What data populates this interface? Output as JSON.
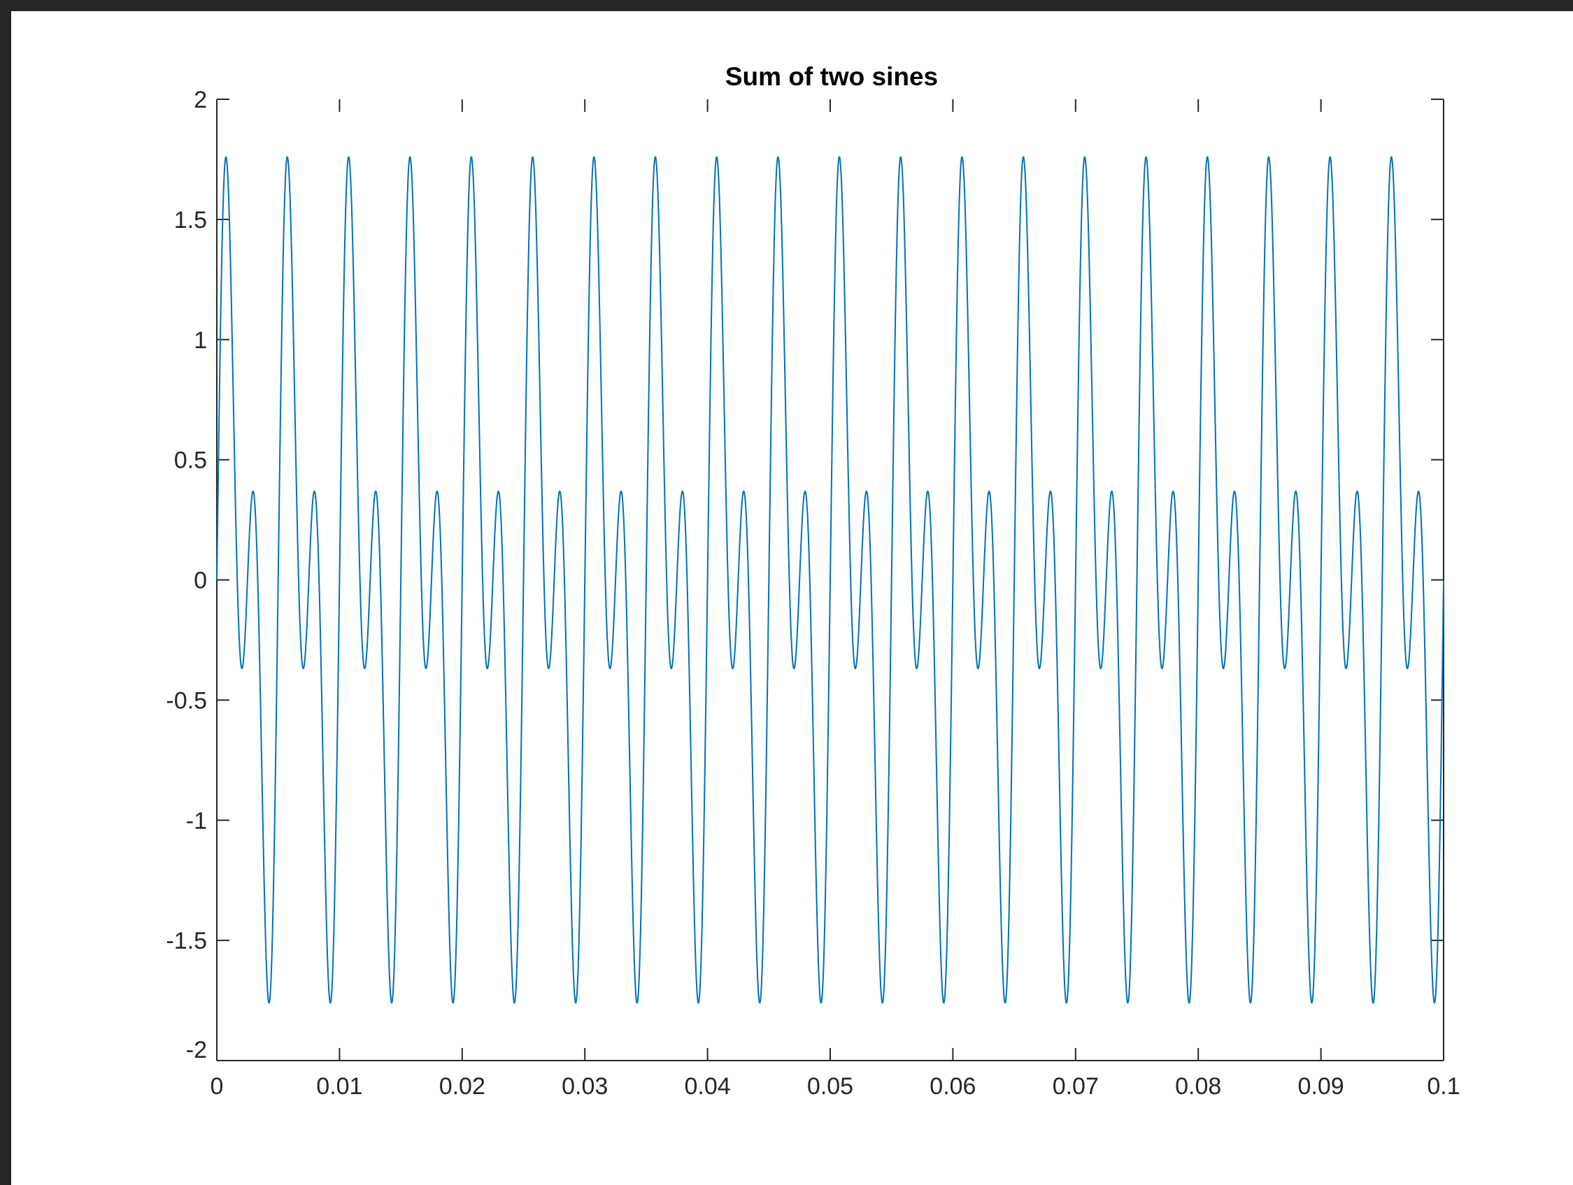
{
  "chart_data": {
    "type": "line",
    "title": "Sum of two sines",
    "xlabel": "",
    "ylabel": "",
    "xlim": [
      0,
      0.1
    ],
    "ylim": [
      -2,
      2
    ],
    "x_ticks": [
      0,
      0.01,
      0.02,
      0.03,
      0.04,
      0.05,
      0.06,
      0.07,
      0.08,
      0.09,
      0.1
    ],
    "x_tick_labels": [
      "0",
      "0.01",
      "0.02",
      "0.03",
      "0.04",
      "0.05",
      "0.06",
      "0.07",
      "0.08",
      "0.09",
      "0.1"
    ],
    "y_ticks": [
      -2,
      -1.5,
      -1,
      -0.5,
      0,
      0.5,
      1,
      1.5,
      2
    ],
    "y_tick_labels": [
      "-2",
      "-1.5",
      "-1",
      "-0.5",
      "0",
      "0.5",
      "1",
      "1.5",
      "2"
    ],
    "grid": false,
    "line_color": "#0072BD",
    "series": [
      {
        "function": "sin(2*pi*400*t) + sin(2*pi*200*t)",
        "x_range": [
          0,
          0.1
        ],
        "samples": 8001,
        "y_max": 1.76,
        "y_min": -1.76
      }
    ]
  }
}
